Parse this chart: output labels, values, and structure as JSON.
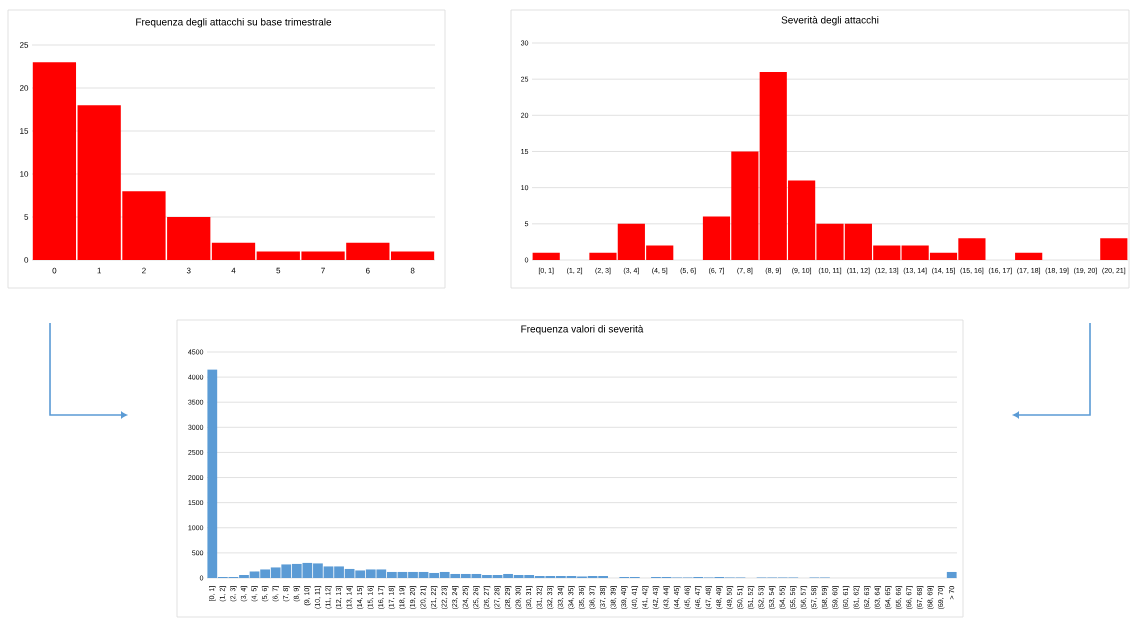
{
  "chart_data": [
    {
      "type": "bar",
      "title": "Frequenza degli attacchi su base trimestrale",
      "categories": [
        "0",
        "1",
        "2",
        "3",
        "4",
        "5",
        "7",
        "6",
        "8"
      ],
      "values": [
        23,
        18,
        8,
        5,
        2,
        1,
        1,
        2,
        1
      ],
      "color": "#ff0000",
      "ylim": [
        0,
        25
      ],
      "yticks": [
        0,
        5,
        10,
        15,
        20,
        25
      ],
      "grid": "y"
    },
    {
      "type": "bar",
      "title": "Severità degli attacchi",
      "categories": [
        "[0, 1]",
        "(1, 2]",
        "(2, 3]",
        "(3, 4]",
        "(4, 5]",
        "(5, 6]",
        "(6, 7]",
        "(7, 8]",
        "(8, 9]",
        "(9, 10]",
        "(10, 11]",
        "(11, 12]",
        "(12, 13]",
        "(13, 14]",
        "(14, 15]",
        "(15, 16]",
        "(16, 17]",
        "(17, 18]",
        "(18, 19]",
        "(19, 20]",
        "(20, 21]"
      ],
      "values": [
        1,
        0,
        1,
        5,
        2,
        0,
        6,
        15,
        26,
        11,
        5,
        5,
        2,
        2,
        1,
        3,
        0,
        1,
        0,
        0,
        3
      ],
      "color": "#ff0000",
      "ylim": [
        0,
        30
      ],
      "yticks": [
        0,
        5,
        10,
        15,
        20,
        25,
        30
      ],
      "grid": "y"
    },
    {
      "type": "bar",
      "title": "Frequenza valori di severità",
      "categories": [
        "[0, 1]",
        "(1, 2]",
        "(2, 3]",
        "(3, 4]",
        "(4, 5]",
        "(5, 6]",
        "(6, 7]",
        "(7, 8]",
        "(8, 9]",
        "(9, 10]",
        "(10, 11]",
        "(11, 12]",
        "(12, 13]",
        "(13, 14]",
        "(14, 15]",
        "(15, 16]",
        "(16, 17]",
        "(17, 18]",
        "(18, 19]",
        "(19, 20]",
        "(20, 21]",
        "(21, 22]",
        "(22, 23]",
        "(23, 24]",
        "(24, 25]",
        "(25, 26]",
        "(26, 27]",
        "(27, 28]",
        "(28, 29]",
        "(29, 30]",
        "(30, 31]",
        "(31, 32]",
        "(32, 33]",
        "(33, 34]",
        "(34, 35]",
        "(35, 36]",
        "(36, 37]",
        "(37, 38]",
        "(38, 39]",
        "(39, 40]",
        "(40, 41]",
        "(41, 42]",
        "(42, 43]",
        "(43, 44]",
        "(44, 45]",
        "(45, 46]",
        "(46, 47]",
        "(47, 48]",
        "(48, 49]",
        "(49, 50]",
        "(50, 51]",
        "(51, 52]",
        "(52, 53]",
        "(53, 54]",
        "(54, 55]",
        "(55, 56]",
        "(56, 57]",
        "(57, 58]",
        "(58, 59]",
        "(59, 60]",
        "(60, 61]",
        "(61, 62]",
        "(62, 63]",
        "(63, 64]",
        "(64, 65]",
        "(65, 66]",
        "(66, 67]",
        "(67, 68]",
        "(68, 69]",
        "(69, 70]",
        "> 70"
      ],
      "values": [
        4150,
        20,
        20,
        60,
        130,
        170,
        210,
        270,
        280,
        300,
        290,
        230,
        230,
        180,
        150,
        170,
        170,
        120,
        120,
        120,
        120,
        100,
        120,
        80,
        80,
        80,
        60,
        60,
        80,
        60,
        60,
        40,
        40,
        40,
        40,
        30,
        40,
        40,
        0,
        20,
        20,
        0,
        20,
        20,
        10,
        10,
        20,
        10,
        20,
        10,
        10,
        0,
        10,
        10,
        10,
        10,
        0,
        10,
        10,
        0,
        0,
        0,
        0,
        0,
        0,
        0,
        0,
        0,
        0,
        0,
        120
      ],
      "color": "#5b9bd5",
      "ylim": [
        0,
        4500
      ],
      "yticks": [
        0,
        500,
        1000,
        1500,
        2000,
        2500,
        3000,
        3500,
        4000,
        4500
      ],
      "grid": "y"
    }
  ]
}
